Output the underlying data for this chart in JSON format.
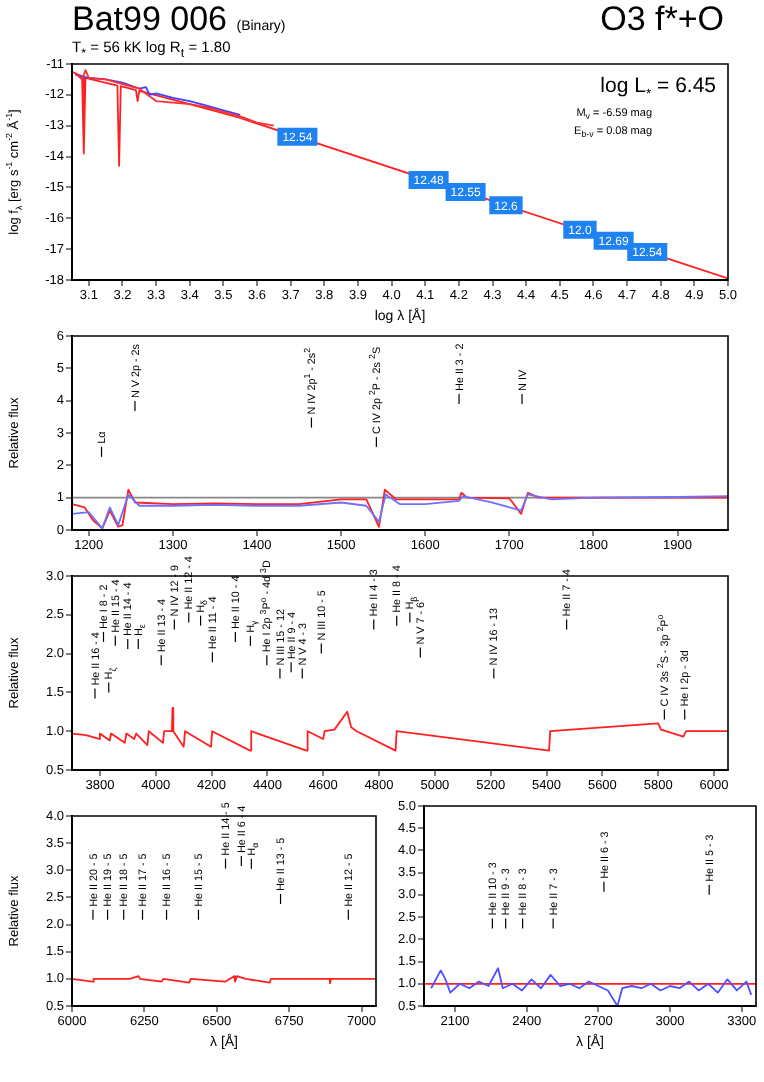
{
  "chart_data": [
    {
      "type": "line",
      "title": "Bat99 006",
      "subtitle": "(Binary)",
      "xlabel": "log λ [Å]",
      "ylabel": "log f$_{λ}$ [erg s$^{-1}$ cm$^{-2}$ Å$^{-1}$]",
      "xlim": [
        3.05,
        5.0
      ],
      "ylim": [
        -18,
        -11
      ],
      "xticks": [
        3.1,
        3.2,
        3.3,
        3.4,
        3.5,
        3.6,
        3.7,
        3.8,
        3.9,
        {
          "value": 4,
          "label": "4.0"
        },
        4.1,
        4.2,
        4.3,
        4.4,
        4.5,
        4.6,
        4.7,
        4.8,
        4.9,
        {
          "value": 5,
          "label": "5.0"
        }
      ],
      "yticks": [
        -18,
        -17,
        -16,
        -15,
        -14,
        -13,
        -12,
        -11
      ],
      "grid": false,
      "legend": false,
      "marker": "none",
      "series": [
        {
          "color": "#ff3030",
          "x": [
            3.06,
            3.08,
            3.09,
            3.1,
            3.15,
            3.2,
            3.25,
            3.3,
            3.35,
            3.4,
            3.45,
            3.5,
            3.55,
            3.6,
            3.65
          ],
          "values": [
            -11.3,
            -11.5,
            -11.2,
            -11.45,
            -11.5,
            -11.65,
            -11.8,
            -12.2,
            -12.25,
            -12.3,
            -12.4,
            -12.55,
            -12.7,
            -12.9,
            -13.0
          ]
        },
        {
          "color": "#4040ff",
          "x": [
            3.06,
            3.1,
            3.15,
            3.2,
            3.25,
            3.27,
            3.28,
            3.3,
            3.35,
            3.4,
            3.45,
            3.5,
            3.55
          ],
          "values": [
            -11.35,
            -11.45,
            -11.5,
            -11.6,
            -11.8,
            -11.75,
            -12.0,
            -11.95,
            -12.1,
            -12.2,
            -12.35,
            -12.5,
            -12.65
          ]
        },
        {
          "color": "#ff2020",
          "x": [
            3.05,
            3.08,
            3.085,
            3.09,
            3.185,
            3.19,
            3.195,
            3.24,
            3.245,
            3.25,
            3.4,
            3.55,
            5.0
          ],
          "values": [
            -11.25,
            -11.4,
            -13.9,
            -11.45,
            -11.7,
            -14.3,
            -11.72,
            -11.85,
            -12.2,
            -11.87,
            -12.3,
            -12.75,
            -17.95
          ]
        }
      ],
      "annotations": [
        "O3 f*+O",
        "T$_{*}$ =  56 kK   log R$_{t}$ = 1.80",
        "log L$_{*}$ = 6.45",
        "M$_{v}$ = -6.59 mag",
        "E$_{b-v}$ = 0.08 mag",
        {
          "text": "12.54",
          "x": 3.72,
          "y": -13.36
        },
        {
          "text": "12.48",
          "x": 4.11,
          "y": -14.76
        },
        {
          "text": "12.55",
          "x": 4.22,
          "y": -15.15
        },
        {
          "text": "12.6",
          "x": 4.34,
          "y": -15.58
        },
        {
          "text": "12.0",
          "x": 4.56,
          "y": -16.37
        },
        {
          "text": "12.69",
          "x": 4.66,
          "y": -16.73
        },
        {
          "text": "12.54",
          "x": 4.76,
          "y": -17.09
        }
      ]
    },
    {
      "type": "line",
      "ylabel": "Relative flux",
      "xlim": [
        1180,
        1960
      ],
      "ylim": [
        0,
        6
      ],
      "xticks": [
        1200,
        1300,
        1400,
        1500,
        1600,
        1700,
        1800,
        1900
      ],
      "yticks": [
        0,
        1,
        2,
        3,
        4,
        5,
        6
      ],
      "grid": false,
      "legend": false,
      "marker": "none",
      "ref_lines": [
        {
          "axis": "y",
          "value": 1,
          "color": "#888888"
        }
      ],
      "series": [
        {
          "color": "#7070ff",
          "x": [
            1180,
            1200,
            1216,
            1225,
            1235,
            1247,
            1260,
            1300,
            1350,
            1400,
            1450,
            1500,
            1530,
            1545,
            1553,
            1570,
            1600,
            1640,
            1645,
            1680,
            1714,
            1722,
            1750,
            1800,
            1900,
            1960
          ],
          "values": [
            0.5,
            0.55,
            0.05,
            0.7,
            0.15,
            1.1,
            0.75,
            0.75,
            0.78,
            0.75,
            0.75,
            0.85,
            0.75,
            0.25,
            1.1,
            0.8,
            0.8,
            0.9,
            1.05,
            0.85,
            0.6,
            1.1,
            0.95,
            1.0,
            1.02,
            1.05
          ]
        },
        {
          "color": "#ff2020",
          "x": [
            1180,
            1195,
            1205,
            1216,
            1225,
            1235,
            1240,
            1247,
            1255,
            1300,
            1350,
            1400,
            1450,
            1500,
            1530,
            1545,
            1552,
            1565,
            1600,
            1640,
            1643,
            1650,
            1700,
            1714,
            1722,
            1735,
            1800,
            1900,
            1960
          ],
          "values": [
            0.8,
            0.7,
            0.3,
            0.05,
            0.6,
            0.1,
            0.15,
            1.25,
            0.85,
            0.8,
            0.82,
            0.8,
            0.8,
            0.95,
            0.95,
            0.1,
            1.25,
            0.95,
            0.95,
            0.95,
            1.15,
            1.0,
            0.98,
            0.5,
            1.15,
            1.0,
            1.0,
            1.0,
            1.0
          ]
        }
      ],
      "annotations": [
        "Lα",
        "N V 2p - 2s",
        "N IV 2p$^{1}$ - 2s$^{2}$",
        "C IV 2p $^{2}$P - 2s $^{2}$S",
        "He II 3 - 2",
        "N IV"
      ]
    },
    {
      "type": "line",
      "ylabel": "Relative flux",
      "xlim": [
        3700,
        6050
      ],
      "ylim": [
        0.5,
        3.0
      ],
      "xticks": [
        3800,
        4000,
        4200,
        4400,
        4600,
        4800,
        5000,
        5200,
        5400,
        5600,
        5800,
        6000
      ],
      "yticks": [
        0.5,
        {
          "value": 1,
          "label": "1.0"
        },
        1.5,
        {
          "value": 2,
          "label": "2.0"
        },
        2.5,
        {
          "value": 3,
          "label": "3.0"
        }
      ],
      "grid": false,
      "legend": false,
      "marker": "none",
      "series": [
        {
          "color": "#ff2020",
          "x": [
            3700,
            3750,
            3797,
            3800,
            3835,
            3840,
            3889,
            3895,
            3923,
            3930,
            3970,
            3975,
            4026,
            4030,
            4058,
            4060,
            4063,
            4100,
            4105,
            4198,
            4202,
            4338,
            4342,
            4540,
            4544,
            4600,
            4605,
            4640,
            4686,
            4700,
            4720,
            4859,
            4863,
            5409,
            5413,
            5800,
            5810,
            5890,
            5900,
            6050
          ],
          "values": [
            0.97,
            0.95,
            0.9,
            0.97,
            0.88,
            0.97,
            0.85,
            0.97,
            0.9,
            0.97,
            0.82,
            1.0,
            0.85,
            1.0,
            1.0,
            1.3,
            1.0,
            0.8,
            1.0,
            0.8,
            1.0,
            0.75,
            1.0,
            0.75,
            1.0,
            0.9,
            1.0,
            1.02,
            1.25,
            1.05,
            1.0,
            0.75,
            1.0,
            0.75,
            1.0,
            1.1,
            1.02,
            0.93,
            1.0,
            1.0
          ]
        }
      ],
      "annotations": [
        "He II 16 - 4",
        "H$_{ζ}$",
        "He I 8 - 2",
        "He II 15 - 4",
        "He II 14 - 4",
        "H$_{ε}$",
        "He II 13 - 4",
        "N IV 12 - 9",
        "He II 12 - 4",
        "H$_{δ}$",
        "He II 11 - 4",
        "He II 10 - 4",
        "H$_{γ}$",
        "He I 2p $^{3}$P$^{o}$ - 4d $^{3}$D",
        "N III 15 - 12",
        "He II 9 - 4",
        "N V 4 - 3",
        "N III 10 - 5",
        "He II 4 - 3",
        "He II 8 - 4",
        "H$_{β}$",
        "N V 7 - 6",
        "N IV 16 - 13",
        "He II 7 - 4",
        "C IV 3s $^{2}$S - 3p $^{2}$P$^{o}$",
        "He I 2p - 3d"
      ]
    },
    {
      "type": "line",
      "ylabel": "Relative flux",
      "xlabel": "λ [Å]",
      "xlim": [
        6000,
        7050
      ],
      "ylim": [
        0.5,
        4.0
      ],
      "xticks": [
        6000,
        6250,
        6500,
        6750,
        7000
      ],
      "yticks": [
        0.5,
        {
          "value": 1,
          "label": "1.0"
        },
        1.5,
        {
          "value": 2,
          "label": "2.0"
        },
        2.5,
        {
          "value": 3,
          "label": "3.0"
        },
        3.5,
        {
          "value": 4,
          "label": "4.0"
        }
      ],
      "grid": false,
      "legend": false,
      "marker": "none",
      "series": [
        {
          "color": "#ff2020",
          "x": [
            6000,
            6070,
            6075,
            6200,
            6230,
            6235,
            6310,
            6315,
            6405,
            6410,
            6530,
            6560,
            6563,
            6570,
            6600,
            6683,
            6687,
            6890,
            6891,
            6895,
            7050
          ],
          "values": [
            1.0,
            0.95,
            1.0,
            1.0,
            1.05,
            1.0,
            0.95,
            1.0,
            0.93,
            1.0,
            0.95,
            1.05,
            0.95,
            1.05,
            1.0,
            0.93,
            1.0,
            1.0,
            0.92,
            1.0,
            1.0
          ]
        }
      ],
      "annotations": [
        "He II 20 - 5",
        "He II 19 - 5",
        "He II 18 - 5",
        "He II 17 - 5",
        "He II 16 - 5",
        "He II 15 - 5",
        "He II 14 - 5",
        "He II 6 - 4",
        "H$_{α}$",
        "He II 13 - 5",
        "He II 12 - 5"
      ]
    },
    {
      "type": "line",
      "xlabel": "λ [Å]",
      "xlim": [
        1970,
        3360
      ],
      "ylim": [
        0.5,
        5.0
      ],
      "xticks": [
        2100,
        2400,
        2700,
        3000,
        3300
      ],
      "yticks": [
        0.5,
        {
          "value": 1,
          "label": "1.0"
        },
        1.5,
        {
          "value": 2,
          "label": "2.0"
        },
        2.5,
        {
          "value": 3,
          "label": "3.0"
        },
        3.5,
        {
          "value": 4,
          "label": "4.0"
        },
        4.5,
        {
          "value": 5,
          "label": "5.0"
        }
      ],
      "grid": false,
      "legend": false,
      "marker": "none",
      "series": [
        {
          "color": "#5050ff",
          "x": [
            2000,
            2040,
            2060,
            2080,
            2120,
            2160,
            2200,
            2240,
            2280,
            2300,
            2340,
            2380,
            2420,
            2460,
            2500,
            2540,
            2580,
            2620,
            2660,
            2700,
            2740,
            2780,
            2800,
            2840,
            2880,
            2920,
            2960,
            3000,
            3040,
            3080,
            3120,
            3160,
            3200,
            3240,
            3280,
            3320,
            3340
          ],
          "values": [
            0.9,
            1.3,
            1.1,
            0.8,
            1.0,
            0.9,
            1.05,
            0.95,
            1.35,
            0.9,
            1.0,
            0.85,
            1.1,
            0.9,
            1.2,
            0.95,
            1.0,
            0.9,
            1.05,
            0.95,
            0.85,
            0.5,
            0.9,
            0.95,
            0.9,
            1.0,
            0.85,
            0.95,
            0.9,
            1.05,
            0.85,
            1.0,
            0.8,
            1.1,
            0.85,
            1.05,
            0.75
          ]
        },
        {
          "color": "#ff2020",
          "x": [
            1970,
            3360
          ],
          "values": [
            1.0,
            1.0
          ]
        }
      ],
      "annotations": [
        "He II 10 - 3",
        "He II 9 - 3",
        "He II 8 - 3",
        "He II 7 - 3",
        "He II 6 - 3",
        "He II 5 - 3"
      ]
    }
  ]
}
